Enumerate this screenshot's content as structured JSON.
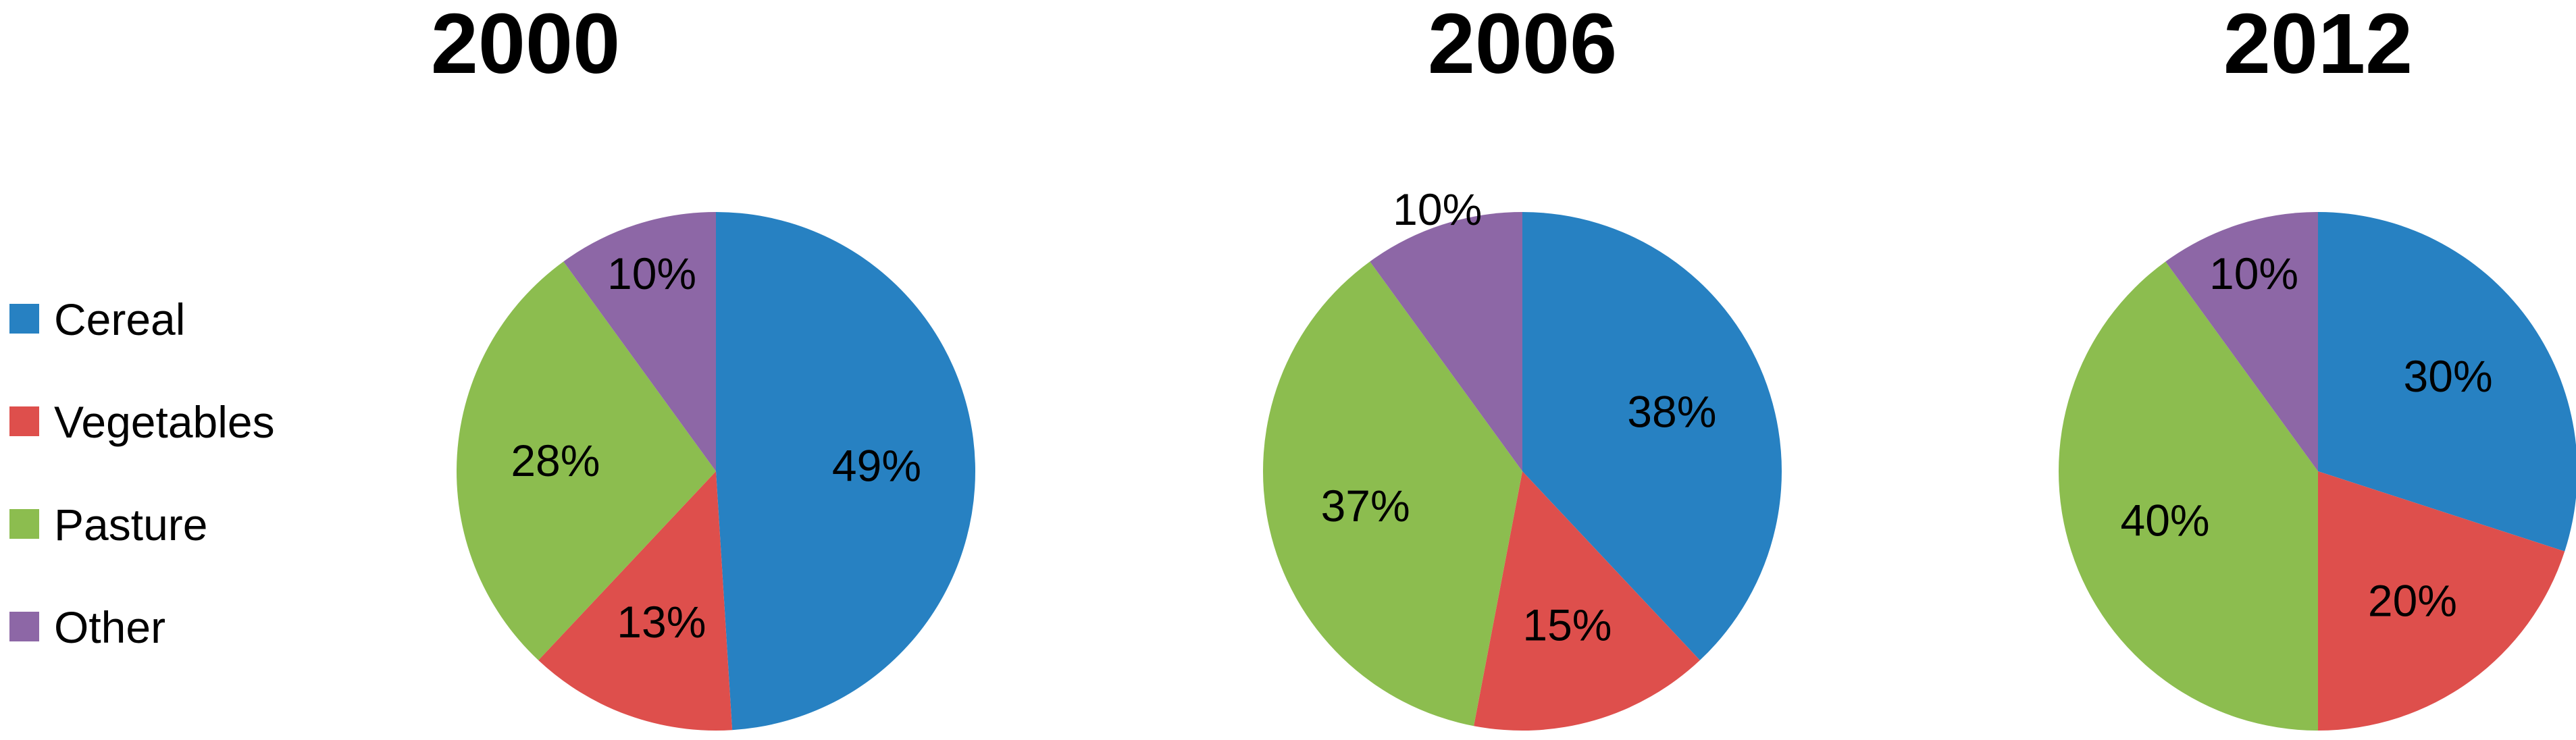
{
  "legend": {
    "placement": "left",
    "items": [
      {
        "label": "Cereal",
        "color": "#2781C2"
      },
      {
        "label": "Vegetables",
        "color": "#DE4F4C"
      },
      {
        "label": "Pasture",
        "color": "#8CBD4F"
      },
      {
        "label": "Other",
        "color": "#8D67A6"
      }
    ]
  },
  "chart_data": [
    {
      "type": "pie",
      "title": "2000",
      "categories": [
        "Cereal",
        "Vegetables",
        "Pasture",
        "Other"
      ],
      "values": [
        49,
        13,
        28,
        10
      ],
      "labels": [
        "49%",
        "13%",
        "28%",
        "10%"
      ],
      "colors": [
        "#2781C2",
        "#DE4F4C",
        "#8CBD4F",
        "#8D67A6"
      ]
    },
    {
      "type": "pie",
      "title": "2006",
      "categories": [
        "Cereal",
        "Vegetables",
        "Pasture",
        "Other"
      ],
      "values": [
        38,
        15,
        37,
        10
      ],
      "labels": [
        "38%",
        "15%",
        "37%",
        "10%"
      ],
      "colors": [
        "#2781C2",
        "#DE4F4C",
        "#8CBD4F",
        "#8D67A6"
      ]
    },
    {
      "type": "pie",
      "title": "2012",
      "categories": [
        "Cereal",
        "Vegetables",
        "Pasture",
        "Other"
      ],
      "values": [
        30,
        20,
        40,
        10
      ],
      "labels": [
        "30%",
        "20%",
        "40%",
        "10%"
      ],
      "colors": [
        "#2781C2",
        "#DE4F4C",
        "#8CBD4F",
        "#8D67A6"
      ]
    }
  ]
}
